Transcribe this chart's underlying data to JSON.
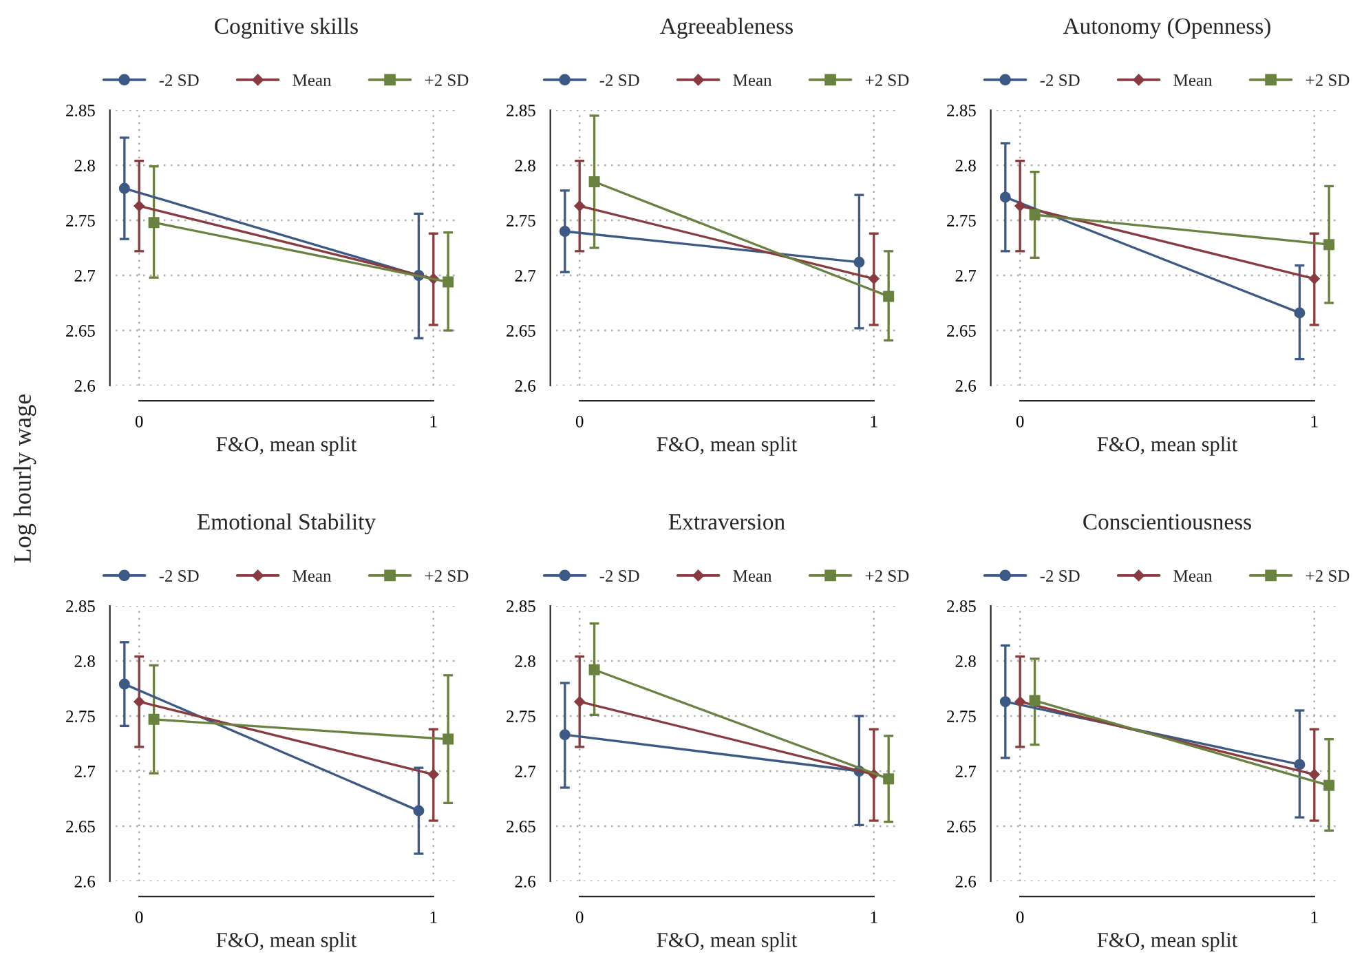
{
  "chart_data": [
    {
      "type": "line",
      "title": "Cognitive skills",
      "xlabel": "F&O, mean split",
      "ylabel": "Log hourly wage",
      "xlim": [
        -0.08,
        1.08
      ],
      "xticks": [
        0,
        1
      ],
      "ylim": [
        2.6,
        2.85
      ],
      "yticks": [
        2.6,
        2.65,
        2.7,
        2.75,
        2.8,
        2.85
      ],
      "grid": true,
      "legend": "top",
      "series": [
        {
          "name": "-2 SD",
          "color": "#3d5a86",
          "marker": "circle",
          "x": [
            -0.05,
            0.95
          ],
          "values": [
            2.779,
            2.7
          ],
          "errors": [
            [
              2.733,
              2.825
            ],
            [
              2.643,
              2.756
            ]
          ]
        },
        {
          "name": "Mean",
          "color": "#8a3b3f",
          "marker": "diamond",
          "x": [
            0,
            1
          ],
          "values": [
            2.763,
            2.697
          ],
          "errors": [
            [
              2.722,
              2.804
            ],
            [
              2.655,
              2.738
            ]
          ]
        },
        {
          "name": "+2 SD",
          "color": "#6a8240",
          "marker": "square",
          "x": [
            0.05,
            1.05
          ],
          "values": [
            2.748,
            2.694
          ],
          "errors": [
            [
              2.698,
              2.799
            ],
            [
              2.65,
              2.739
            ]
          ]
        }
      ]
    },
    {
      "type": "line",
      "title": "Agreeableness",
      "xlabel": "F&O, mean split",
      "xlim": [
        -0.08,
        1.08
      ],
      "xticks": [
        0,
        1
      ],
      "ylim": [
        2.6,
        2.85
      ],
      "yticks": [
        2.6,
        2.65,
        2.7,
        2.75,
        2.8,
        2.85
      ],
      "grid": true,
      "legend": "top",
      "series": [
        {
          "name": "-2 SD",
          "color": "#3d5a86",
          "marker": "circle",
          "x": [
            -0.05,
            0.95
          ],
          "values": [
            2.74,
            2.712
          ],
          "errors": [
            [
              2.703,
              2.777
            ],
            [
              2.652,
              2.773
            ]
          ]
        },
        {
          "name": "Mean",
          "color": "#8a3b3f",
          "marker": "diamond",
          "x": [
            0,
            1
          ],
          "values": [
            2.763,
            2.697
          ],
          "errors": [
            [
              2.722,
              2.804
            ],
            [
              2.655,
              2.738
            ]
          ]
        },
        {
          "name": "+2 SD",
          "color": "#6a8240",
          "marker": "square",
          "x": [
            0.05,
            1.05
          ],
          "values": [
            2.785,
            2.681
          ],
          "errors": [
            [
              2.725,
              2.845
            ],
            [
              2.641,
              2.722
            ]
          ]
        }
      ]
    },
    {
      "type": "line",
      "title": "Autonomy (Openness)",
      "xlabel": "F&O, mean split",
      "xlim": [
        -0.08,
        1.08
      ],
      "xticks": [
        0,
        1
      ],
      "ylim": [
        2.6,
        2.85
      ],
      "yticks": [
        2.6,
        2.65,
        2.7,
        2.75,
        2.8,
        2.85
      ],
      "grid": true,
      "legend": "top",
      "series": [
        {
          "name": "-2 SD",
          "color": "#3d5a86",
          "marker": "circle",
          "x": [
            -0.05,
            0.95
          ],
          "values": [
            2.771,
            2.666
          ],
          "errors": [
            [
              2.722,
              2.82
            ],
            [
              2.624,
              2.709
            ]
          ]
        },
        {
          "name": "Mean",
          "color": "#8a3b3f",
          "marker": "diamond",
          "x": [
            0,
            1
          ],
          "values": [
            2.763,
            2.697
          ],
          "errors": [
            [
              2.722,
              2.804
            ],
            [
              2.655,
              2.738
            ]
          ]
        },
        {
          "name": "+2 SD",
          "color": "#6a8240",
          "marker": "square",
          "x": [
            0.05,
            1.05
          ],
          "values": [
            2.755,
            2.728
          ],
          "errors": [
            [
              2.716,
              2.794
            ],
            [
              2.675,
              2.781
            ]
          ]
        }
      ]
    },
    {
      "type": "line",
      "title": "Emotional Stability",
      "xlabel": "F&O, mean split",
      "xlim": [
        -0.08,
        1.08
      ],
      "xticks": [
        0,
        1
      ],
      "ylim": [
        2.6,
        2.85
      ],
      "yticks": [
        2.6,
        2.65,
        2.7,
        2.75,
        2.8,
        2.85
      ],
      "grid": true,
      "legend": "top",
      "series": [
        {
          "name": "-2 SD",
          "color": "#3d5a86",
          "marker": "circle",
          "x": [
            -0.05,
            0.95
          ],
          "values": [
            2.779,
            2.664
          ],
          "errors": [
            [
              2.741,
              2.817
            ],
            [
              2.625,
              2.703
            ]
          ]
        },
        {
          "name": "Mean",
          "color": "#8a3b3f",
          "marker": "diamond",
          "x": [
            0,
            1
          ],
          "values": [
            2.763,
            2.697
          ],
          "errors": [
            [
              2.722,
              2.804
            ],
            [
              2.655,
              2.738
            ]
          ]
        },
        {
          "name": "+2 SD",
          "color": "#6a8240",
          "marker": "square",
          "x": [
            0.05,
            1.05
          ],
          "values": [
            2.747,
            2.729
          ],
          "errors": [
            [
              2.698,
              2.796
            ],
            [
              2.671,
              2.787
            ]
          ]
        }
      ]
    },
    {
      "type": "line",
      "title": "Extraversion",
      "xlabel": "F&O, mean split",
      "xlim": [
        -0.08,
        1.08
      ],
      "xticks": [
        0,
        1
      ],
      "ylim": [
        2.6,
        2.85
      ],
      "yticks": [
        2.6,
        2.65,
        2.7,
        2.75,
        2.8,
        2.85
      ],
      "grid": true,
      "legend": "top",
      "series": [
        {
          "name": "-2 SD",
          "color": "#3d5a86",
          "marker": "circle",
          "x": [
            -0.05,
            0.95
          ],
          "values": [
            2.733,
            2.7
          ],
          "errors": [
            [
              2.685,
              2.78
            ],
            [
              2.651,
              2.75
            ]
          ]
        },
        {
          "name": "Mean",
          "color": "#8a3b3f",
          "marker": "diamond",
          "x": [
            0,
            1
          ],
          "values": [
            2.763,
            2.697
          ],
          "errors": [
            [
              2.722,
              2.804
            ],
            [
              2.655,
              2.738
            ]
          ]
        },
        {
          "name": "+2 SD",
          "color": "#6a8240",
          "marker": "square",
          "x": [
            0.05,
            1.05
          ],
          "values": [
            2.792,
            2.693
          ],
          "errors": [
            [
              2.751,
              2.834
            ],
            [
              2.654,
              2.732
            ]
          ]
        }
      ]
    },
    {
      "type": "line",
      "title": "Conscientiousness",
      "xlabel": "F&O, mean split",
      "xlim": [
        -0.08,
        1.08
      ],
      "xticks": [
        0,
        1
      ],
      "ylim": [
        2.6,
        2.85
      ],
      "yticks": [
        2.6,
        2.65,
        2.7,
        2.75,
        2.8,
        2.85
      ],
      "grid": true,
      "legend": "top",
      "series": [
        {
          "name": "-2 SD",
          "color": "#3d5a86",
          "marker": "circle",
          "x": [
            -0.05,
            0.95
          ],
          "values": [
            2.763,
            2.706
          ],
          "errors": [
            [
              2.712,
              2.814
            ],
            [
              2.658,
              2.755
            ]
          ]
        },
        {
          "name": "Mean",
          "color": "#8a3b3f",
          "marker": "diamond",
          "x": [
            0,
            1
          ],
          "values": [
            2.763,
            2.697
          ],
          "errors": [
            [
              2.722,
              2.804
            ],
            [
              2.655,
              2.738
            ]
          ]
        },
        {
          "name": "+2 SD",
          "color": "#6a8240",
          "marker": "square",
          "x": [
            0.05,
            1.05
          ],
          "values": [
            2.764,
            2.687
          ],
          "errors": [
            [
              2.724,
              2.802
            ],
            [
              2.646,
              2.729
            ]
          ]
        }
      ]
    }
  ]
}
